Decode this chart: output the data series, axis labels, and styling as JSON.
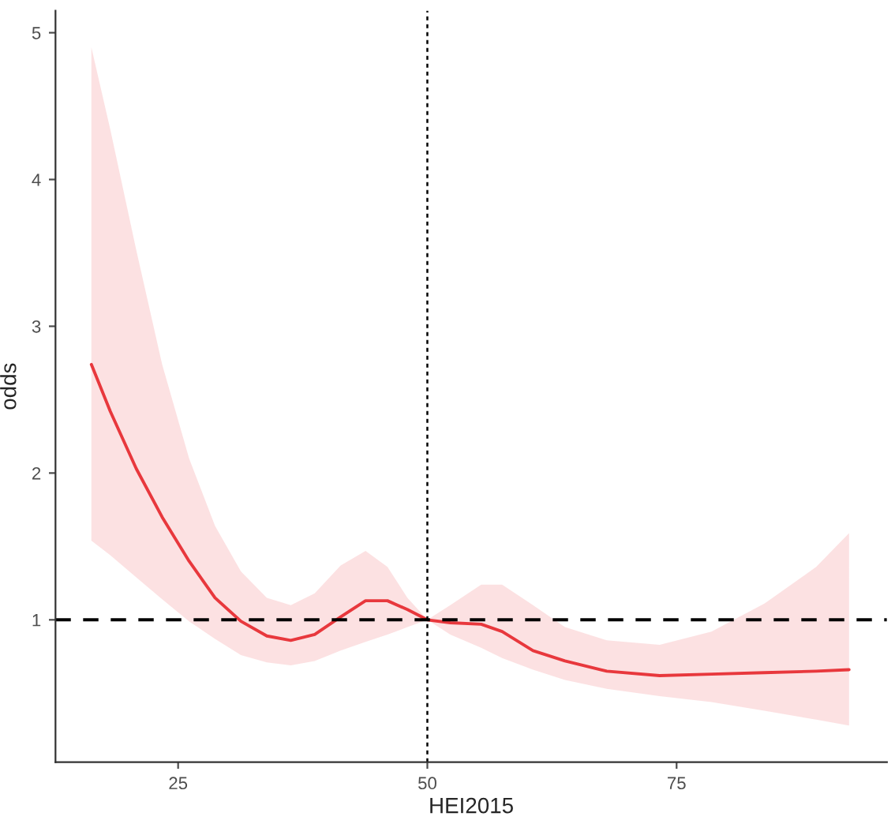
{
  "chart_data": {
    "type": "line",
    "xlabel": "HEI2015",
    "ylabel": "odds",
    "x": [
      16.3,
      18.2,
      20.8,
      23.4,
      26.1,
      28.7,
      31.3,
      33.9,
      36.3,
      38.7,
      41.3,
      43.8,
      46,
      48,
      50,
      52.3,
      55.4,
      57.5,
      60.6,
      63.8,
      68,
      73.3,
      78.5,
      83.8,
      89,
      92.3
    ],
    "series": [
      {
        "color": "#e8383d",
        "values": [
          2.74,
          2.42,
          2.03,
          1.7,
          1.4,
          1.15,
          0.99,
          0.89,
          0.86,
          0.9,
          1.02,
          1.13,
          1.13,
          1.07,
          1.0,
          0.98,
          0.97,
          0.92,
          0.79,
          0.72,
          0.65,
          0.62,
          0.63,
          0.64,
          0.65,
          0.66
        ],
        "upper": [
          4.9,
          4.34,
          3.52,
          2.74,
          2.1,
          1.64,
          1.33,
          1.15,
          1.1,
          1.18,
          1.37,
          1.47,
          1.36,
          1.15,
          1.0,
          1.1,
          1.24,
          1.24,
          1.1,
          0.95,
          0.86,
          0.83,
          0.92,
          1.11,
          1.36,
          1.59
        ],
        "lower": [
          1.54,
          1.44,
          1.29,
          1.14,
          0.99,
          0.87,
          0.76,
          0.71,
          0.69,
          0.72,
          0.79,
          0.85,
          0.9,
          0.95,
          1.0,
          0.9,
          0.81,
          0.74,
          0.66,
          0.59,
          0.53,
          0.48,
          0.44,
          0.38,
          0.32,
          0.28
        ]
      }
    ],
    "xlim": [
      12.7,
      96.1
    ],
    "ylim": [
      0.03,
      5.15
    ],
    "xticks": [
      25,
      50,
      75
    ],
    "yticks": [
      1,
      2,
      3,
      4,
      5
    ],
    "ref_lines": [
      {
        "axis": "y",
        "value": 1,
        "color": "#000000",
        "line_style": "dashed"
      },
      {
        "axis": "x",
        "value": 50,
        "color": "#000000",
        "line_style": "dotted"
      }
    ],
    "grid": false,
    "marker": "none",
    "line_style": "solid"
  }
}
